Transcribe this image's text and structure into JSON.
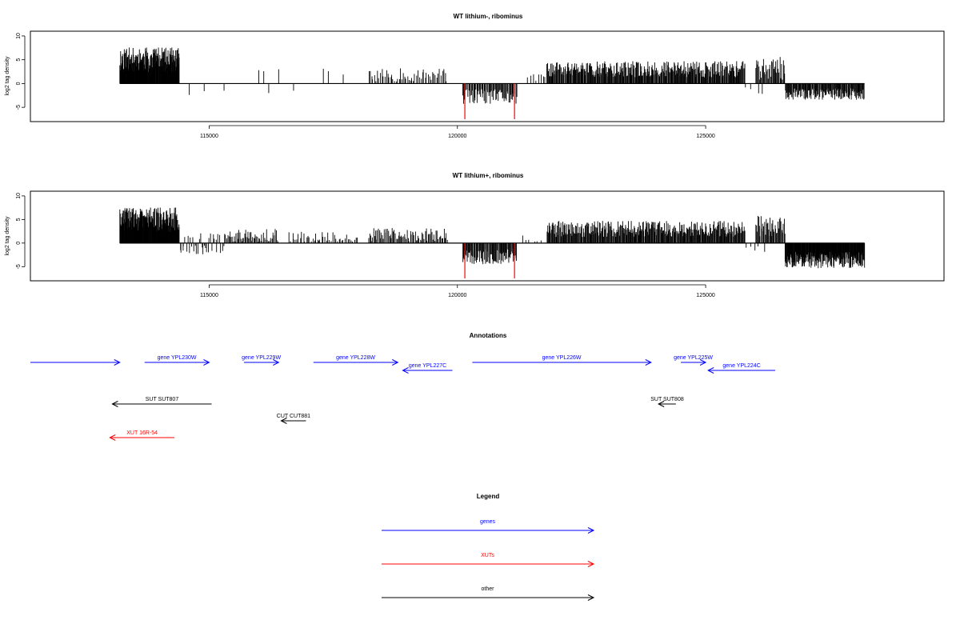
{
  "chart_data": [
    {
      "type": "bar",
      "title": "WT lithium-, ribominus",
      "xlabel": "",
      "ylabel": "log2 tag density",
      "xlim": [
        111400,
        129800
      ],
      "ylim": [
        -8,
        11
      ],
      "xticks": [
        115000,
        120000,
        125000
      ],
      "yticks": [
        -5,
        0,
        5,
        10
      ],
      "grid": false,
      "baseline_range": [
        113200,
        128200
      ],
      "density_segments": [
        {
          "x": [
            113200,
            114400
          ],
          "mean": 5.0,
          "jitter": 2.6,
          "count": 190
        },
        {
          "x": [
            114400,
            118000
          ],
          "mean": 0.0,
          "jitter": 0.0,
          "count": 0,
          "sparse": [
            [
              114600,
              -2.4
            ],
            [
              114900,
              -1.6
            ],
            [
              115300,
              -1.5
            ],
            [
              116000,
              2.8
            ],
            [
              116100,
              2.6
            ],
            [
              116200,
              -2.0
            ],
            [
              116400,
              3.0
            ],
            [
              116700,
              -1.5
            ],
            [
              117300,
              3.1
            ],
            [
              117400,
              2.6
            ],
            [
              117700,
              1.9
            ]
          ]
        },
        {
          "x": [
            118200,
            119800
          ],
          "mean": 1.8,
          "jitter": 1.4,
          "count": 55
        },
        {
          "x": [
            120100,
            121200
          ],
          "mean": -2.8,
          "jitter": 1.6,
          "count": 70
        },
        {
          "x": [
            121400,
            121800
          ],
          "mean": 1.2,
          "jitter": 0.8,
          "count": 8
        },
        {
          "x": [
            121800,
            125800
          ],
          "mean": 3.0,
          "jitter": 1.7,
          "count": 330
        },
        {
          "x": [
            125800,
            126200
          ],
          "mean": -1.5,
          "jitter": 1.0,
          "count": 4
        },
        {
          "x": [
            126000,
            126600
          ],
          "mean": 3.2,
          "jitter": 2.4,
          "count": 38
        },
        {
          "x": [
            126600,
            128200
          ],
          "mean": -2.2,
          "jitter": 1.2,
          "count": 140
        }
      ],
      "highlight_marks": [
        {
          "x": 120150,
          "y": -7.5,
          "color": "#ff0000"
        },
        {
          "x": 121150,
          "y": -7.5,
          "color": "#ff0000"
        }
      ]
    },
    {
      "type": "bar",
      "title": "WT lithium+, ribominus",
      "xlabel": "",
      "ylabel": "log2 tag density",
      "xlim": [
        111400,
        129800
      ],
      "ylim": [
        -8,
        11
      ],
      "xticks": [
        115000,
        120000,
        125000
      ],
      "yticks": [
        -5,
        0,
        5,
        10
      ],
      "grid": false,
      "baseline_range": [
        113200,
        128200
      ],
      "density_segments": [
        {
          "x": [
            113200,
            114400
          ],
          "mean": 5.0,
          "jitter": 2.6,
          "count": 190
        },
        {
          "x": [
            114400,
            115300
          ],
          "mean": 0.0,
          "jitter": 1.9,
          "count": 35
        },
        {
          "x": [
            115300,
            116400
          ],
          "mean": 1.2,
          "jitter": 1.9,
          "count": 60
        },
        {
          "x": [
            116600,
            118000
          ],
          "mean": 1.0,
          "jitter": 1.6,
          "count": 45
        },
        {
          "x": [
            118200,
            119800
          ],
          "mean": 1.8,
          "jitter": 1.4,
          "count": 80
        },
        {
          "x": [
            120100,
            121200
          ],
          "mean": -2.8,
          "jitter": 1.7,
          "count": 85
        },
        {
          "x": [
            121300,
            121700
          ],
          "mean": 1.0,
          "jitter": 0.7,
          "count": 6
        },
        {
          "x": [
            121800,
            125800
          ],
          "mean": 3.0,
          "jitter": 1.7,
          "count": 330
        },
        {
          "x": [
            125800,
            126200
          ],
          "mean": -1.2,
          "jitter": 0.8,
          "count": 5
        },
        {
          "x": [
            126000,
            126600
          ],
          "mean": 3.5,
          "jitter": 2.4,
          "count": 40
        },
        {
          "x": [
            126600,
            128200
          ],
          "mean": -3.6,
          "jitter": 1.8,
          "count": 220
        }
      ],
      "highlight_marks": [
        {
          "x": 120150,
          "y": -7.5,
          "color": "#ff0000"
        },
        {
          "x": 121150,
          "y": -7.5,
          "color": "#ff0000"
        }
      ]
    }
  ],
  "annotations": {
    "title": "Annotations",
    "features": [
      {
        "label": "",
        "start": 111400,
        "end": 113200,
        "color": "#0000ff",
        "row": 0
      },
      {
        "label": "gene YPL230W",
        "start": 113700,
        "end": 115000,
        "color": "#0000ff",
        "row": 0
      },
      {
        "label": "gene YPL229W",
        "start": 115700,
        "end": 116400,
        "color": "#0000ff",
        "row": 0
      },
      {
        "label": "gene YPL228W",
        "start": 117100,
        "end": 118800,
        "color": "#0000ff",
        "row": 0
      },
      {
        "label": "gene YPL227C",
        "start": 119900,
        "end": 118900,
        "color": "#0000ff",
        "row": 1
      },
      {
        "label": "gene YPL226W",
        "start": 120300,
        "end": 123900,
        "color": "#0000ff",
        "row": 0
      },
      {
        "label": "gene YPL225W",
        "start": 124500,
        "end": 125000,
        "color": "#0000ff",
        "row": 0
      },
      {
        "label": "gene YPL224C",
        "start": 126400,
        "end": 125050,
        "color": "#0000ff",
        "row": 1
      },
      {
        "label": "SUT SUT807",
        "start": 115050,
        "end": 113050,
        "color": "#000000",
        "row": 2
      },
      {
        "label": "SUT SUT808",
        "start": 124400,
        "end": 124050,
        "color": "#000000",
        "row": 2
      },
      {
        "label": "CUT CUT881",
        "start": 116950,
        "end": 116450,
        "color": "#000000",
        "row": 3
      },
      {
        "label": "XUT 16R-54",
        "start": 114300,
        "end": 113000,
        "color": "#ff0000",
        "row": 4
      }
    ]
  },
  "legend": {
    "title": "Legend",
    "items": [
      {
        "label": "genes",
        "color": "#0000ff"
      },
      {
        "label": "XUTs",
        "color": "#ff0000"
      },
      {
        "label": "other",
        "color": "#000000"
      }
    ]
  }
}
